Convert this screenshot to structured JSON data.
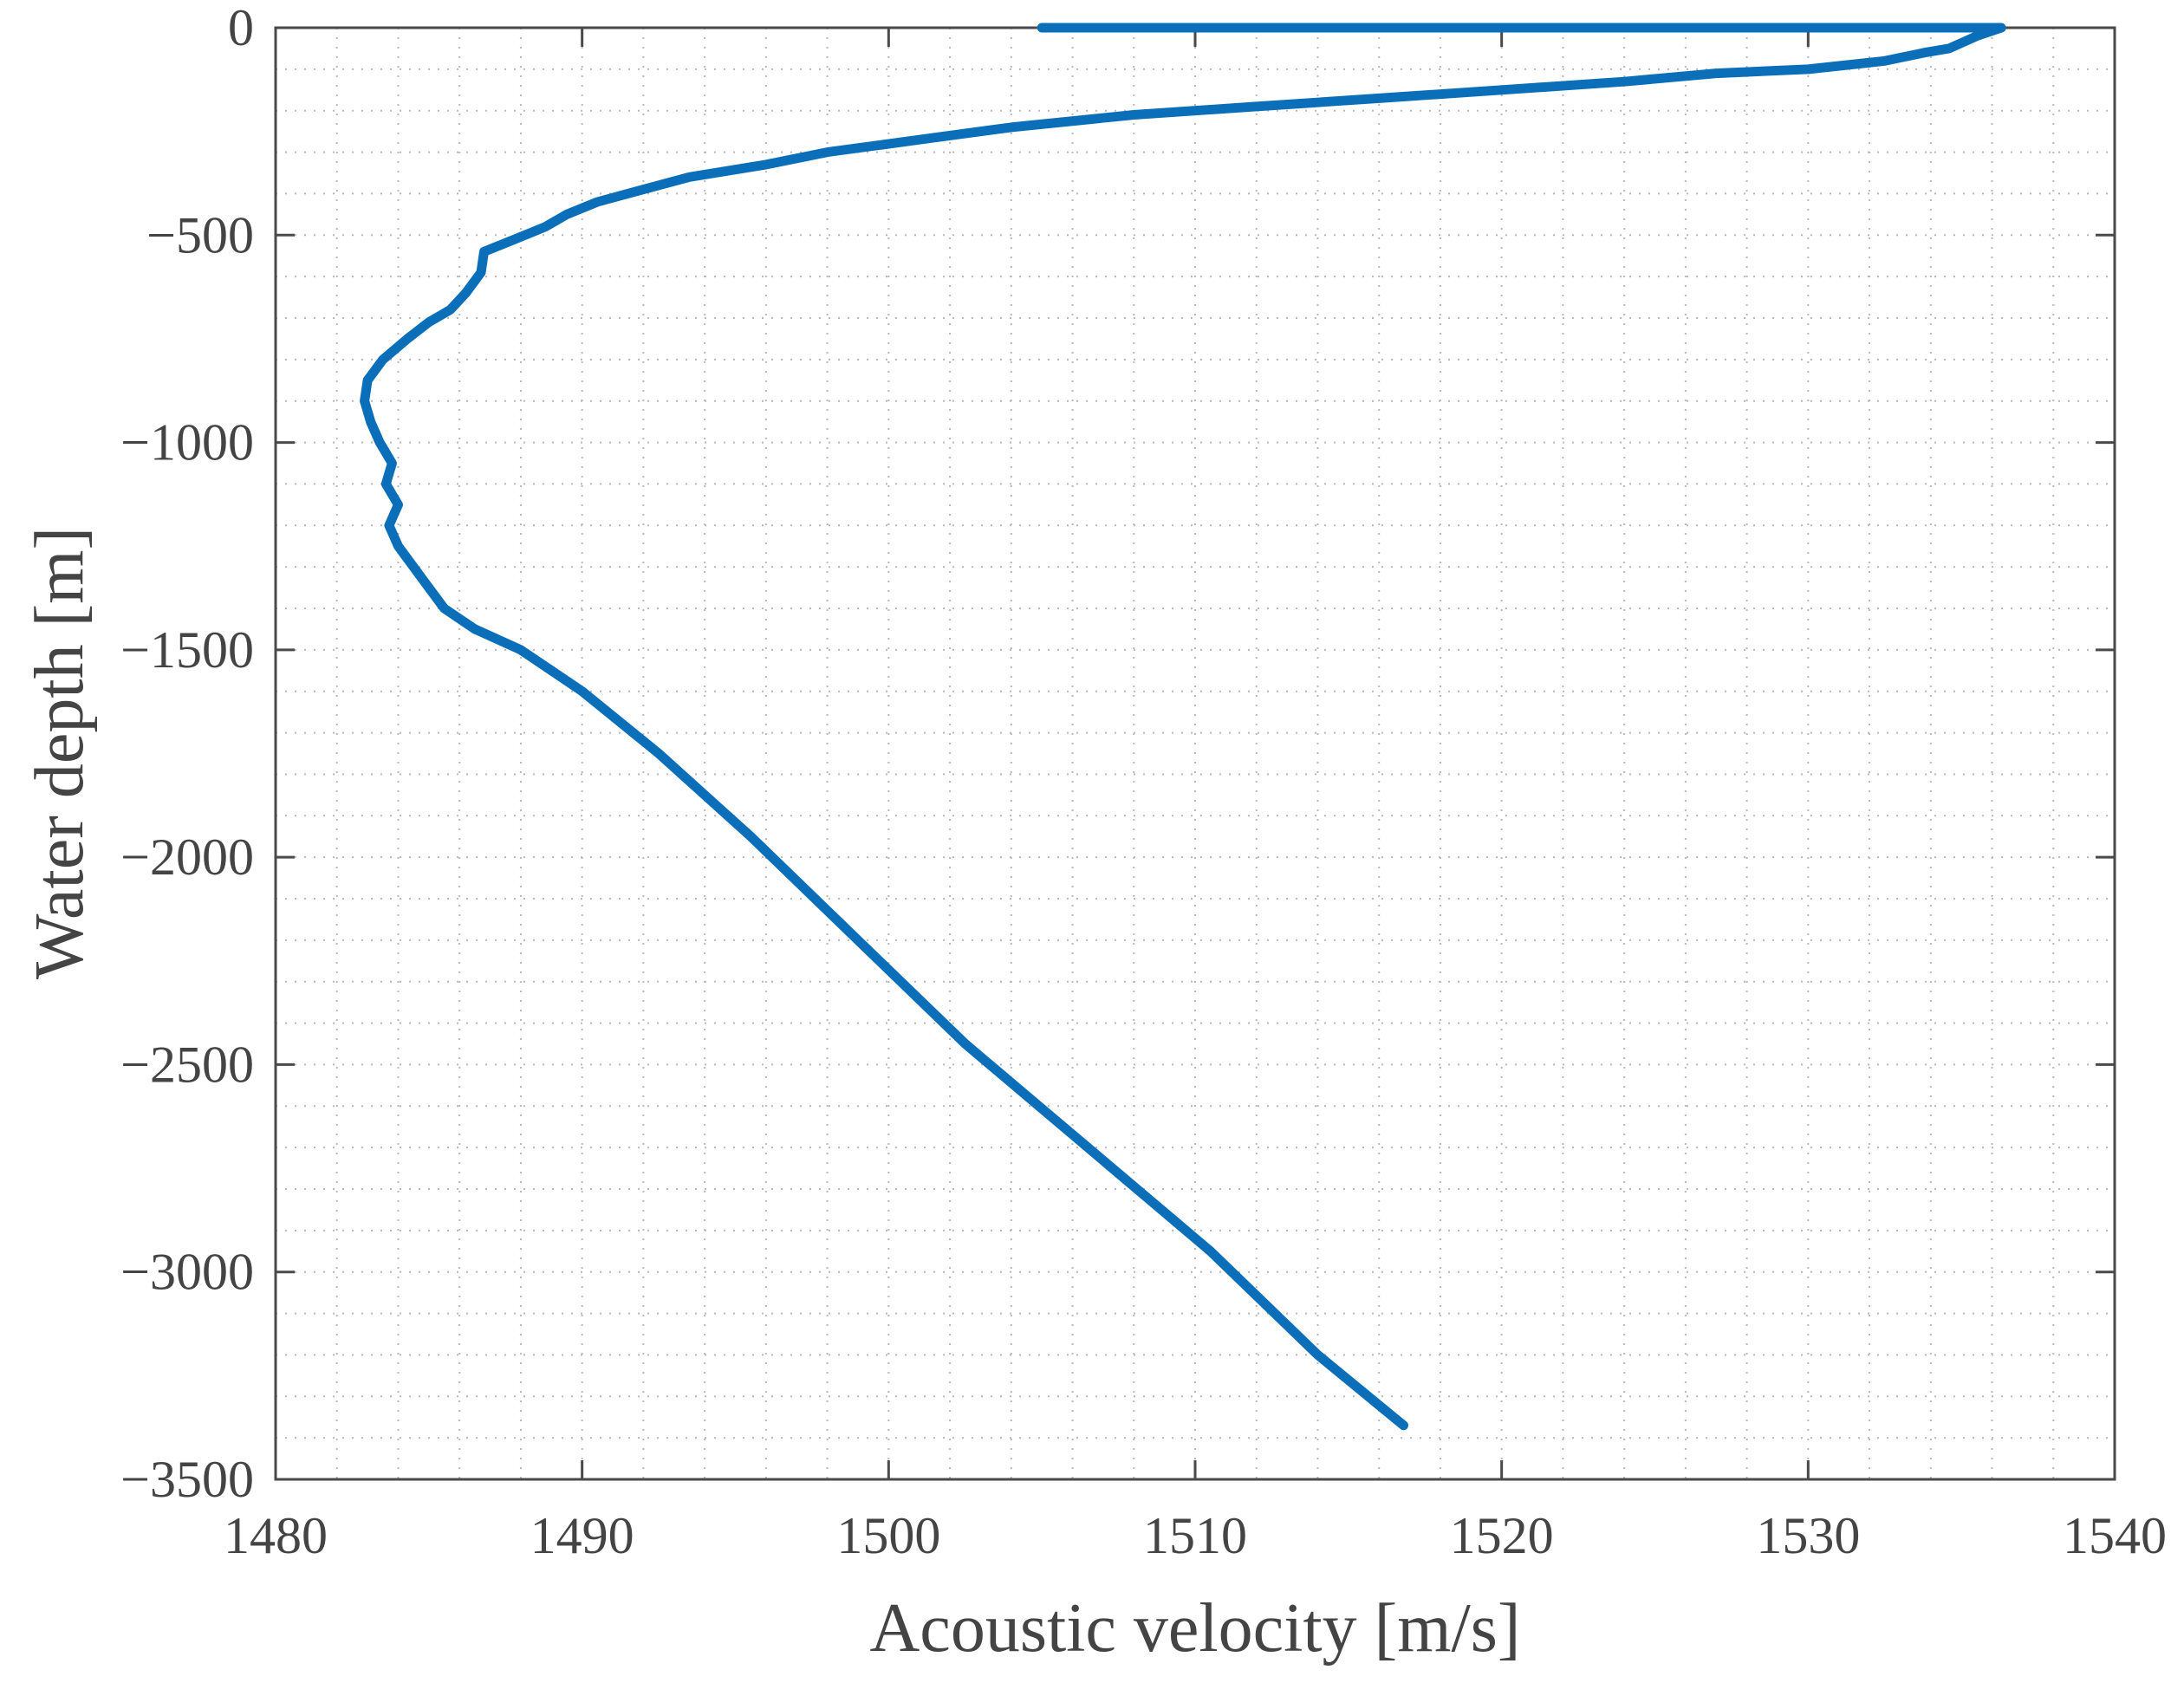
{
  "chart_data": {
    "type": "line",
    "title": "",
    "xlabel": "Acoustic velocity [m/s]",
    "ylabel": "Water depth [m]",
    "xlim": [
      1480,
      1540
    ],
    "ylim": [
      -3500,
      0
    ],
    "xticks": [
      1480,
      1490,
      1500,
      1510,
      1520,
      1530,
      1540
    ],
    "xtick_labels": [
      "1480",
      "1490",
      "1500",
      "1510",
      "1520",
      "1530",
      "1540"
    ],
    "yticks": [
      0,
      -500,
      -1000,
      -1500,
      -2000,
      -2500,
      -3000,
      -3500
    ],
    "ytick_labels": [
      "0",
      "−500",
      "−1000",
      "−1500",
      "−2000",
      "−2500",
      "−3000",
      "−3500"
    ],
    "grid": "minor dotted",
    "legend": "none",
    "line_color": "#0a6fb8",
    "series": [
      {
        "x": [
          1505.0,
          1515.0,
          1522.0,
          1530.0,
          1536.3,
          1535.5,
          1534.6,
          1533.8,
          1532.5,
          1530.0,
          1527.0,
          1524.0,
          1520.0,
          1516.0,
          1512.0,
          1508.0,
          1504.0,
          1501.0,
          1498.0,
          1496.0,
          1493.5,
          1492.0,
          1490.5,
          1489.5,
          1488.8,
          1487.8,
          1486.8,
          1486.7,
          1486.2,
          1485.7,
          1485.0,
          1484.3,
          1483.5,
          1483.0,
          1482.9,
          1483.1,
          1483.4,
          1483.8,
          1483.6,
          1484.0,
          1483.7,
          1484.0,
          1484.5,
          1485.0,
          1485.5,
          1486.5,
          1488.0,
          1490.0,
          1492.5,
          1495.5,
          1499.0,
          1502.5,
          1506.5,
          1510.5,
          1514.0,
          1516.8
        ],
        "y": [
          0,
          0,
          0,
          0,
          0,
          -20,
          -50,
          -60,
          -80,
          -100,
          -110,
          -130,
          -150,
          -170,
          -190,
          -210,
          -240,
          -270,
          -300,
          -330,
          -360,
          -390,
          -420,
          -450,
          -480,
          -510,
          -540,
          -590,
          -640,
          -680,
          -710,
          -750,
          -800,
          -850,
          -900,
          -950,
          -1000,
          -1050,
          -1100,
          -1150,
          -1200,
          -1250,
          -1300,
          -1350,
          -1400,
          -1450,
          -1500,
          -1600,
          -1750,
          -1950,
          -2200,
          -2450,
          -2700,
          -2950,
          -3200,
          -3370
        ]
      }
    ]
  }
}
